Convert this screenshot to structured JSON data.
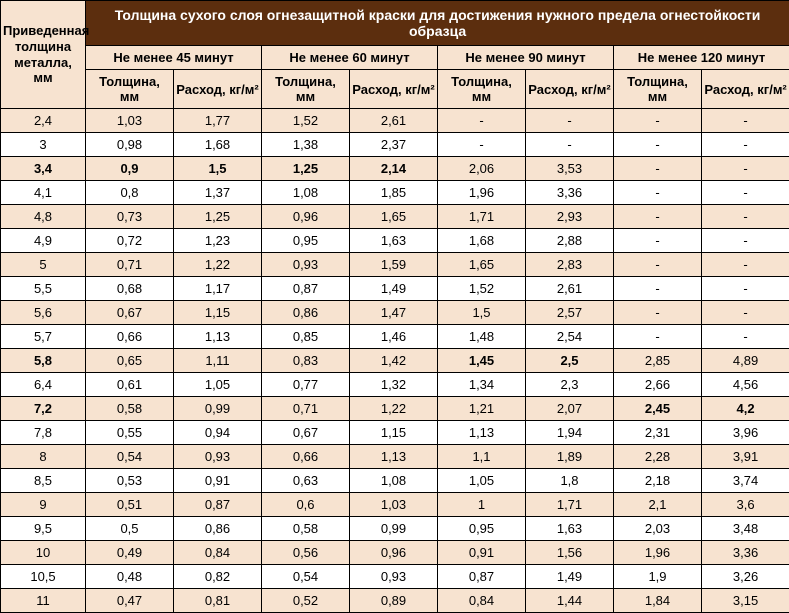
{
  "table": {
    "type": "table",
    "colors": {
      "header_bg": "#5c2e0e",
      "header_text": "#ffffff",
      "subheader_bg": "#f7e3d0",
      "band_odd_bg": "#f7e3d0",
      "band_even_bg": "#ffffff",
      "border": "#000000"
    },
    "main_header": "Толщина сухого слоя огнезащитной краски для достижения нужного предела огнестойкости образца",
    "row_header": "Приведенная толщина металла, мм",
    "groups": [
      "Не менее 45 минут",
      "Не менее 60 минут",
      "Не менее 90 минут",
      "Не менее 120 минут"
    ],
    "subcols": {
      "thickness": "Толщина, мм",
      "rate": "Расход, кг/м²"
    },
    "rows": [
      {
        "t": "2,4",
        "c": [
          "1,03",
          "1,77",
          "1,52",
          "2,61",
          "-",
          "-",
          "-",
          "-"
        ],
        "bold": []
      },
      {
        "t": "3",
        "c": [
          "0,98",
          "1,68",
          "1,38",
          "2,37",
          "-",
          "-",
          "-",
          "-"
        ],
        "bold": []
      },
      {
        "t": "3,4",
        "c": [
          "0,9",
          "1,5",
          "1,25",
          "2,14",
          "2,06",
          "3,53",
          "-",
          "-"
        ],
        "bold": [
          0,
          1,
          2,
          3,
          4
        ],
        "bold_first": true
      },
      {
        "t": "4,1",
        "c": [
          "0,8",
          "1,37",
          "1,08",
          "1,85",
          "1,96",
          "3,36",
          "-",
          "-"
        ],
        "bold": []
      },
      {
        "t": "4,8",
        "c": [
          "0,73",
          "1,25",
          "0,96",
          "1,65",
          "1,71",
          "2,93",
          "-",
          "-"
        ],
        "bold": []
      },
      {
        "t": "4,9",
        "c": [
          "0,72",
          "1,23",
          "0,95",
          "1,63",
          "1,68",
          "2,88",
          "-",
          "-"
        ],
        "bold": []
      },
      {
        "t": "5",
        "c": [
          "0,71",
          "1,22",
          "0,93",
          "1,59",
          "1,65",
          "2,83",
          "-",
          "-"
        ],
        "bold": []
      },
      {
        "t": "5,5",
        "c": [
          "0,68",
          "1,17",
          "0,87",
          "1,49",
          "1,52",
          "2,61",
          "-",
          "-"
        ],
        "bold": []
      },
      {
        "t": "5,6",
        "c": [
          "0,67",
          "1,15",
          "0,86",
          "1,47",
          "1,5",
          "2,57",
          "-",
          "-"
        ],
        "bold": []
      },
      {
        "t": "5,7",
        "c": [
          "0,66",
          "1,13",
          "0,85",
          "1,46",
          "1,48",
          "2,54",
          "-",
          "-"
        ],
        "bold": []
      },
      {
        "t": "5,8",
        "c": [
          "0,65",
          "1,11",
          "0,83",
          "1,42",
          "1,45",
          "2,5",
          "2,85",
          "4,89"
        ],
        "bold": [
          5,
          6
        ],
        "bold_first": true
      },
      {
        "t": "6,4",
        "c": [
          "0,61",
          "1,05",
          "0,77",
          "1,32",
          "1,34",
          "2,3",
          "2,66",
          "4,56"
        ],
        "bold": []
      },
      {
        "t": "7,2",
        "c": [
          "0,58",
          "0,99",
          "0,71",
          "1,22",
          "1,21",
          "2,07",
          "2,45",
          "4,2"
        ],
        "bold": [
          7,
          8
        ],
        "bold_first": true
      },
      {
        "t": "7,8",
        "c": [
          "0,55",
          "0,94",
          "0,67",
          "1,15",
          "1,13",
          "1,94",
          "2,31",
          "3,96"
        ],
        "bold": []
      },
      {
        "t": "8",
        "c": [
          "0,54",
          "0,93",
          "0,66",
          "1,13",
          "1,1",
          "1,89",
          "2,28",
          "3,91"
        ],
        "bold": []
      },
      {
        "t": "8,5",
        "c": [
          "0,53",
          "0,91",
          "0,63",
          "1,08",
          "1,05",
          "1,8",
          "2,18",
          "3,74"
        ],
        "bold": []
      },
      {
        "t": "9",
        "c": [
          "0,51",
          "0,87",
          "0,6",
          "1,03",
          "1",
          "1,71",
          "2,1",
          "3,6"
        ],
        "bold": []
      },
      {
        "t": "9,5",
        "c": [
          "0,5",
          "0,86",
          "0,58",
          "0,99",
          "0,95",
          "1,63",
          "2,03",
          "3,48"
        ],
        "bold": []
      },
      {
        "t": "10",
        "c": [
          "0,49",
          "0,84",
          "0,56",
          "0,96",
          "0,91",
          "1,56",
          "1,96",
          "3,36"
        ],
        "bold": []
      },
      {
        "t": "10,5",
        "c": [
          "0,48",
          "0,82",
          "0,54",
          "0,93",
          "0,87",
          "1,49",
          "1,9",
          "3,26"
        ],
        "bold": []
      },
      {
        "t": "11",
        "c": [
          "0,47",
          "0,81",
          "0,52",
          "0,89",
          "0,84",
          "1,44",
          "1,84",
          "3,15"
        ],
        "bold": []
      }
    ]
  }
}
